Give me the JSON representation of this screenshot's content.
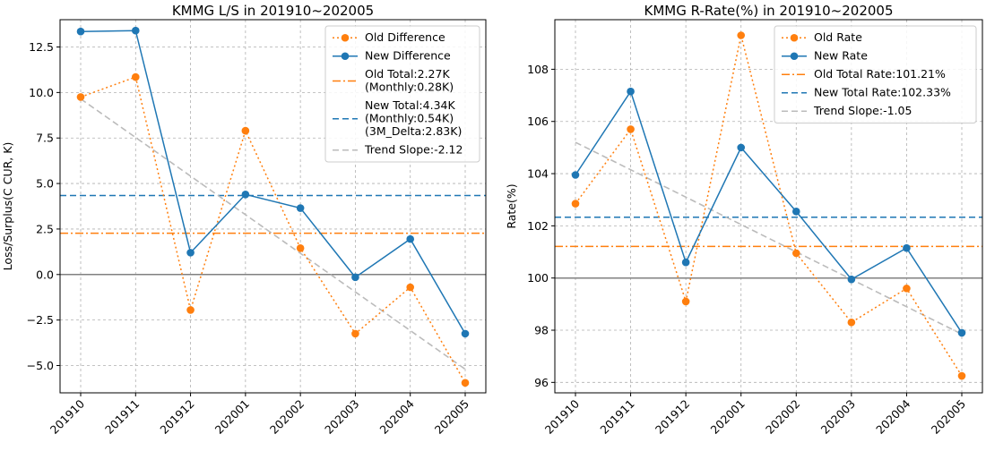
{
  "chart_data": [
    {
      "type": "line",
      "title": "KMMG L/S in 201910~202005",
      "ylabel": "Loss/Surplus(C CUR, K)",
      "xlabel": "",
      "categories": [
        "201910",
        "201911",
        "201912",
        "202001",
        "202002",
        "202003",
        "202004",
        "202005"
      ],
      "ylim": [
        -6.5,
        14.0
      ],
      "yticks": [
        -5.0,
        -2.5,
        0.0,
        2.5,
        5.0,
        7.5,
        10.0,
        12.5
      ],
      "ytick_labels": [
        "−5.0",
        "−2.5",
        "0.0",
        "2.5",
        "5.0",
        "7.5",
        "10.0",
        "12.5"
      ],
      "grid": true,
      "legend_position": "top-right",
      "series": [
        {
          "name": "Old Difference",
          "color": "#ff7f0e",
          "style": "dotted",
          "marker": true,
          "values": [
            9.75,
            10.85,
            -1.95,
            7.9,
            1.45,
            -3.25,
            -0.7,
            -5.95
          ]
        },
        {
          "name": "New Difference",
          "color": "#1f77b4",
          "style": "solid",
          "marker": true,
          "values": [
            13.35,
            13.4,
            1.2,
            4.4,
            3.65,
            -0.15,
            1.95,
            -3.25
          ]
        }
      ],
      "hlines": [
        {
          "label_lines": [
            "Old Total:2.27K",
            "(Monthly:0.28K)"
          ],
          "value": 2.27,
          "color": "#ff7f0e",
          "style": "dashdot"
        },
        {
          "label_lines": [
            "New Total:4.34K",
            "(Monthly:0.54K)",
            "(3M_Delta:2.83K)"
          ],
          "value": 4.34,
          "color": "#1f77b4",
          "style": "dashed"
        },
        {
          "value": 0.0,
          "color": "#808080",
          "style": "solid",
          "legend": false
        }
      ],
      "trend": {
        "label": "Trend Slope:-2.12",
        "start": 9.65,
        "end": -5.2,
        "color": "#bbbbbb",
        "style": "dashed"
      }
    },
    {
      "type": "line",
      "title": "KMMG R-Rate(%) in 201910~202005",
      "ylabel": "Rate(%)",
      "xlabel": "",
      "categories": [
        "201910",
        "201911",
        "201912",
        "202001",
        "202002",
        "202003",
        "202004",
        "202005"
      ],
      "ylim": [
        95.6,
        109.9
      ],
      "yticks": [
        96,
        98,
        100,
        102,
        104,
        106,
        108
      ],
      "ytick_labels": [
        "96",
        "98",
        "100",
        "102",
        "104",
        "106",
        "108"
      ],
      "grid": true,
      "legend_position": "top-right",
      "series": [
        {
          "name": "Old Rate",
          "color": "#ff7f0e",
          "style": "dotted",
          "marker": true,
          "values": [
            102.85,
            105.7,
            99.1,
            109.3,
            100.95,
            98.3,
            99.6,
            96.25
          ]
        },
        {
          "name": "New Rate",
          "color": "#1f77b4",
          "style": "solid",
          "marker": true,
          "values": [
            103.95,
            107.15,
            100.6,
            105.0,
            102.55,
            99.95,
            101.15,
            97.9
          ]
        }
      ],
      "hlines": [
        {
          "label_lines": [
            "Old Total Rate:101.21%"
          ],
          "value": 101.21,
          "color": "#ff7f0e",
          "style": "dashdot"
        },
        {
          "label_lines": [
            "New Total Rate:102.33%"
          ],
          "value": 102.33,
          "color": "#1f77b4",
          "style": "dashed"
        },
        {
          "value": 100.0,
          "color": "#808080",
          "style": "solid",
          "legend": false
        }
      ],
      "trend": {
        "label": "Trend Slope:-1.05",
        "start": 105.2,
        "end": 97.85,
        "color": "#bbbbbb",
        "style": "dashed"
      }
    }
  ]
}
